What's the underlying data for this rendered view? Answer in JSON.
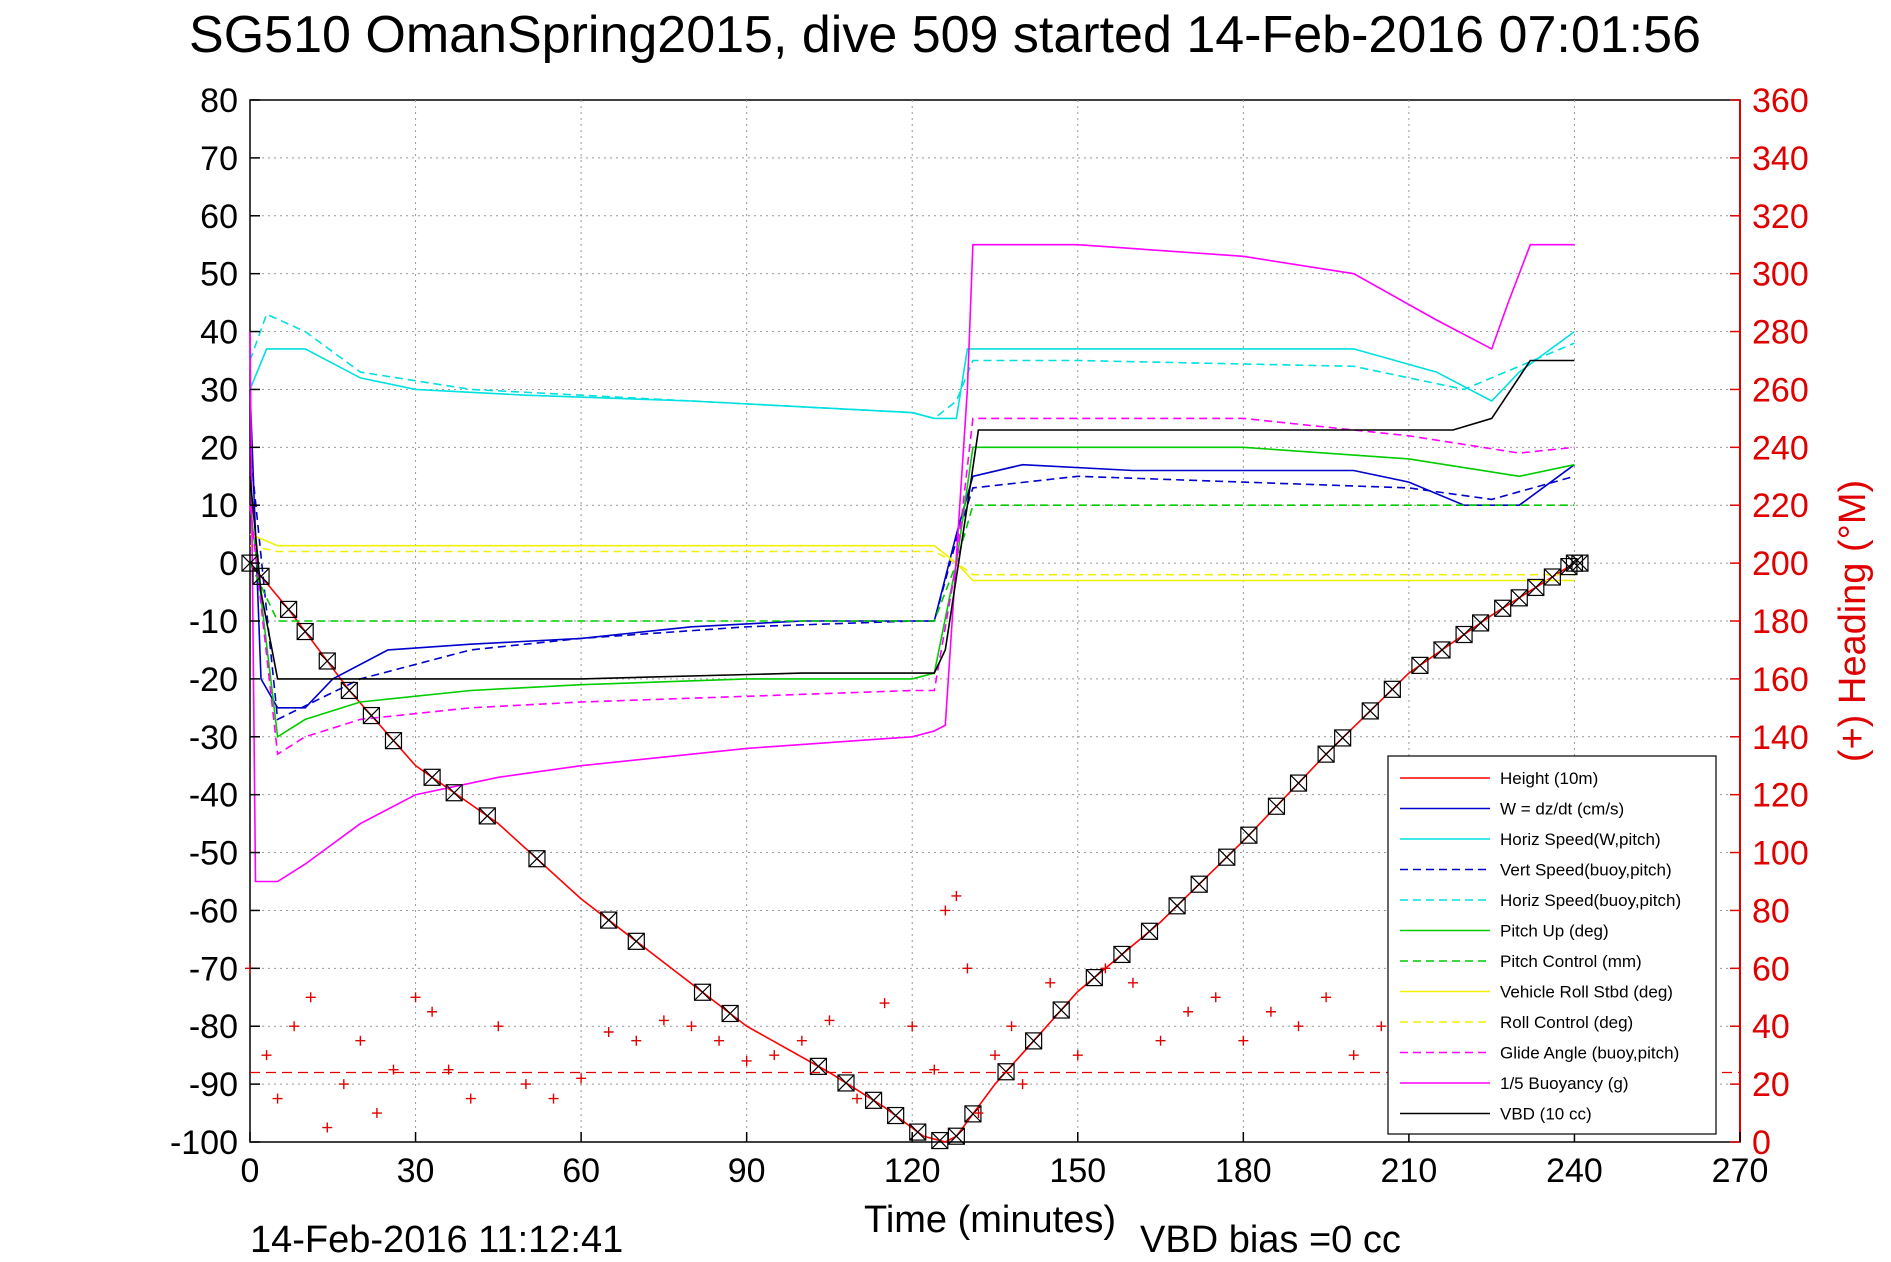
{
  "chart_data": {
    "type": "line",
    "title": "SG510 OmanSpring2015, dive 509 started 14-Feb-2016 07:01:56",
    "xlabel": "Time (minutes)",
    "ylabel": "",
    "ylabel_right": "(+) Heading (°M)",
    "xlim": [
      0,
      270
    ],
    "ylim": [
      -100,
      80
    ],
    "ylim_right": [
      0,
      360
    ],
    "x_ticks": [
      0,
      30,
      60,
      90,
      120,
      150,
      180,
      210,
      240,
      270
    ],
    "y_ticks": [
      80,
      70,
      60,
      50,
      40,
      30,
      20,
      10,
      0,
      -10,
      -20,
      -30,
      -40,
      -50,
      -60,
      -70,
      -80,
      -90,
      -100
    ],
    "y_ticks_right": [
      360,
      340,
      320,
      300,
      280,
      260,
      240,
      220,
      200,
      180,
      160,
      140,
      120,
      100,
      80,
      60,
      40,
      20,
      0
    ],
    "grid": true,
    "legend_position": "bottom-right",
    "footer_left": "14-Feb-2016 11:12:41",
    "footer_right": "VBD bias =0 cc",
    "series": [
      {
        "name": "Height (10m)",
        "color": "#ff0000",
        "style": "solid",
        "x": [
          0,
          7,
          18,
          30,
          45,
          60,
          75,
          90,
          105,
          115,
          122,
          126,
          128,
          135,
          150,
          165,
          180,
          195,
          210,
          225,
          240
        ],
        "values": [
          0,
          -8,
          -22,
          -35,
          -45,
          -58,
          -69,
          -80,
          -88,
          -94,
          -99,
          -100,
          -99,
          -90,
          -74,
          -62,
          -48,
          -33,
          -19,
          -9,
          0
        ]
      },
      {
        "name": "W = dz/dt (cm/s)",
        "color": "#0000cc",
        "style": "solid",
        "x": [
          0,
          2,
          5,
          10,
          15,
          25,
          40,
          60,
          80,
          100,
          120,
          124,
          128,
          131,
          140,
          160,
          180,
          200,
          210,
          220,
          230,
          240
        ],
        "values": [
          30,
          -20,
          -25,
          -25,
          -20,
          -15,
          -14,
          -13,
          -11,
          -10,
          -10,
          -10,
          5,
          15,
          17,
          16,
          16,
          16,
          14,
          10,
          10,
          17
        ]
      },
      {
        "name": "Horiz Speed(W,pitch)",
        "color": "#00e0e0",
        "style": "solid",
        "x": [
          0,
          3,
          10,
          20,
          30,
          50,
          80,
          100,
          120,
          124,
          128,
          130,
          140,
          160,
          180,
          200,
          215,
          225,
          230,
          240
        ],
        "values": [
          30,
          37,
          37,
          32,
          30,
          29,
          28,
          27,
          26,
          25,
          25,
          37,
          37,
          37,
          37,
          37,
          33,
          28,
          33,
          40
        ]
      },
      {
        "name": "Vert Speed(buoy,pitch)",
        "color": "#0000cc",
        "style": "dashed",
        "x": [
          0,
          5,
          20,
          40,
          60,
          90,
          120,
          124,
          128,
          131,
          150,
          180,
          210,
          225,
          240
        ],
        "values": [
          20,
          -27,
          -20,
          -15,
          -13,
          -11,
          -10,
          -10,
          4,
          13,
          15,
          14,
          13,
          11,
          15
        ]
      },
      {
        "name": "Horiz Speed(buoy,pitch)",
        "color": "#00e0e0",
        "style": "dashed",
        "x": [
          0,
          3,
          10,
          20,
          40,
          80,
          120,
          124,
          128,
          131,
          150,
          200,
          220,
          240
        ],
        "values": [
          35,
          43,
          40,
          33,
          30,
          28,
          26,
          25,
          28,
          35,
          35,
          34,
          30,
          38
        ]
      },
      {
        "name": "Pitch Up (deg)",
        "color": "#00cc00",
        "style": "solid",
        "x": [
          0,
          5,
          10,
          20,
          40,
          60,
          90,
          120,
          124,
          128,
          131,
          150,
          180,
          210,
          230,
          240
        ],
        "values": [
          10,
          -30,
          -27,
          -24,
          -22,
          -21,
          -20,
          -20,
          -19,
          0,
          20,
          20,
          20,
          18,
          15,
          17
        ]
      },
      {
        "name": "Pitch Control (mm)",
        "color": "#00cc00",
        "style": "dashed",
        "x": [
          0,
          5,
          10,
          20,
          60,
          120,
          124,
          128,
          131,
          150,
          210,
          230,
          240
        ],
        "values": [
          0,
          -10,
          -10,
          -10,
          -10,
          -10,
          -10,
          0,
          10,
          10,
          10,
          10,
          10
        ]
      },
      {
        "name": "Vehicle Roll Stbd (deg)",
        "color": "#f0f000",
        "style": "solid",
        "x": [
          0,
          5,
          30,
          60,
          90,
          120,
          124,
          128,
          131,
          150,
          180,
          210,
          240
        ],
        "values": [
          5,
          3,
          3,
          3,
          3,
          3,
          3,
          0,
          -3,
          -3,
          -3,
          -3,
          -3
        ]
      },
      {
        "name": "Roll Control (deg)",
        "color": "#f0f000",
        "style": "dashed",
        "x": [
          0,
          5,
          30,
          60,
          90,
          120,
          124,
          128,
          131,
          150,
          180,
          210,
          240
        ],
        "values": [
          3,
          2,
          2,
          2,
          2,
          2,
          2,
          0,
          -2,
          -2,
          -2,
          -2,
          -2
        ]
      },
      {
        "name": "Glide Angle (buoy,pitch)",
        "color": "#ff00ff",
        "style": "dashed",
        "x": [
          0,
          5,
          10,
          20,
          40,
          60,
          90,
          120,
          124,
          128,
          131,
          150,
          180,
          210,
          230,
          240
        ],
        "values": [
          10,
          -33,
          -30,
          -27,
          -25,
          -24,
          -23,
          -22,
          -22,
          0,
          25,
          25,
          25,
          22,
          19,
          20
        ]
      },
      {
        "name": "1/5 Buoyancy (g)",
        "color": "#ff00ff",
        "style": "solid",
        "x": [
          0,
          1,
          5,
          10,
          20,
          30,
          45,
          60,
          90,
          120,
          124,
          126,
          130,
          131,
          150,
          180,
          200,
          215,
          225,
          228,
          232,
          240
        ],
        "values": [
          40,
          -55,
          -55,
          -52,
          -45,
          -40,
          -37,
          -35,
          -32,
          -30,
          -29,
          -28,
          30,
          55,
          55,
          53,
          50,
          42,
          37,
          45,
          55,
          55
        ]
      },
      {
        "name": "VBD (10 cc)",
        "color": "#000000",
        "style": "solid",
        "x": [
          0,
          2,
          5,
          60,
          100,
          124,
          126,
          130,
          132,
          160,
          200,
          218,
          225,
          232,
          240
        ],
        "values": [
          15,
          -5,
          -20,
          -20,
          -19,
          -19,
          -15,
          10,
          23,
          23,
          23,
          23,
          25,
          35,
          35
        ]
      }
    ],
    "height_markers_x": [
      0,
      2,
      7,
      10,
      14,
      18,
      22,
      26,
      33,
      37,
      43,
      52,
      65,
      70,
      82,
      87,
      103,
      108,
      113,
      117,
      121,
      125,
      128,
      131,
      137,
      142,
      147,
      153,
      158,
      163,
      168,
      172,
      177,
      181,
      186,
      190,
      195,
      198,
      203,
      207,
      212,
      216,
      220,
      223,
      227,
      230,
      233,
      236,
      239,
      240,
      241
    ],
    "heading_markers": {
      "name": "Heading",
      "axis": "right",
      "color": "#e00000",
      "x": [
        0,
        3,
        5,
        8,
        11,
        14,
        17,
        20,
        23,
        26,
        30,
        33,
        36,
        40,
        45,
        50,
        55,
        60,
        65,
        70,
        75,
        80,
        85,
        90,
        95,
        100,
        105,
        110,
        115,
        120,
        124,
        126,
        128,
        130,
        132,
        135,
        138,
        140,
        145,
        150,
        155,
        160,
        165,
        170,
        175,
        180,
        185,
        190,
        195,
        200,
        205,
        210,
        215,
        220,
        225,
        230,
        235,
        240
      ],
      "values": [
        60,
        30,
        15,
        40,
        50,
        5,
        20,
        35,
        10,
        25,
        50,
        45,
        25,
        15,
        40,
        20,
        15,
        22,
        38,
        35,
        42,
        40,
        35,
        28,
        30,
        35,
        42,
        15,
        48,
        40,
        25,
        80,
        85,
        60,
        10,
        30,
        40,
        20,
        55,
        30,
        60,
        55,
        35,
        45,
        50,
        35,
        45,
        40,
        50,
        30,
        40,
        35,
        45,
        50,
        35,
        40,
        30,
        25
      ]
    },
    "heading_mean_right": 24
  }
}
